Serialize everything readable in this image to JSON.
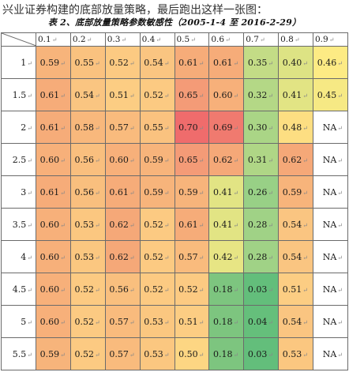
{
  "intro_text": "兴业证券构建的底部放量策略，最后跑出这样一张图：",
  "table": {
    "caption": "表 2、底部放量策略参数敏感性（2005-1-4 至 2016-2-29）",
    "column_headers": [
      "0.1",
      "0.2",
      "0.3",
      "0.4",
      "0.5",
      "0.6",
      "0.7",
      "0.8",
      "0.9"
    ],
    "rows": [
      {
        "label": "1",
        "cells": [
          {
            "text": "0.59",
            "color": "#f7b47b"
          },
          {
            "text": "0.55",
            "color": "#fac27f"
          },
          {
            "text": "0.52",
            "color": "#fcca82"
          },
          {
            "text": "0.54",
            "color": "#fac581"
          },
          {
            "text": "0.61",
            "color": "#f6ac79"
          },
          {
            "text": "0.61",
            "color": "#f6ac79"
          },
          {
            "text": "0.35",
            "color": "#c3dc86"
          },
          {
            "text": "0.40",
            "color": "#dde384"
          },
          {
            "text": "0.46",
            "color": "#fdeb84"
          }
        ]
      },
      {
        "label": "1.5",
        "cells": [
          {
            "text": "0.61",
            "color": "#f6ac79"
          },
          {
            "text": "0.54",
            "color": "#fac581"
          },
          {
            "text": "0.51",
            "color": "#fccd83"
          },
          {
            "text": "0.52",
            "color": "#fcca82"
          },
          {
            "text": "0.65",
            "color": "#f49b77"
          },
          {
            "text": "0.60",
            "color": "#f7b07a"
          },
          {
            "text": "0.32",
            "color": "#b4d886"
          },
          {
            "text": "0.41",
            "color": "#e2e484"
          },
          {
            "text": "0.45",
            "color": "#f6e984"
          }
        ]
      },
      {
        "label": "2",
        "cells": [
          {
            "text": "0.61",
            "color": "#f6ac79"
          },
          {
            "text": "0.58",
            "color": "#f8b87c"
          },
          {
            "text": "0.57",
            "color": "#f9bb7d"
          },
          {
            "text": "0.55",
            "color": "#fac27f"
          },
          {
            "text": "0.70",
            "color": "#ef6c6c"
          },
          {
            "text": "0.69",
            "color": "#f07a6f"
          },
          {
            "text": "0.30",
            "color": "#aad586"
          },
          {
            "text": "0.48",
            "color": "#fdde82"
          },
          {
            "text": "NA",
            "color": "#ffffff"
          }
        ]
      },
      {
        "label": "2.5",
        "cells": [
          {
            "text": "0.60",
            "color": "#f7b07a"
          },
          {
            "text": "0.56",
            "color": "#f9bf7e"
          },
          {
            "text": "0.60",
            "color": "#f7b07a"
          },
          {
            "text": "0.59",
            "color": "#f7b47b"
          },
          {
            "text": "0.65",
            "color": "#f49b77"
          },
          {
            "text": "0.62",
            "color": "#f5a878"
          },
          {
            "text": "0.31",
            "color": "#afd686"
          },
          {
            "text": "0.62",
            "color": "#f5a878"
          },
          {
            "text": "NA",
            "color": "#ffffff"
          }
        ]
      },
      {
        "label": "3",
        "cells": [
          {
            "text": "0.61",
            "color": "#f6ac79"
          },
          {
            "text": "0.56",
            "color": "#f9bf7e"
          },
          {
            "text": "0.61",
            "color": "#f6ac79"
          },
          {
            "text": "0.59",
            "color": "#f7b47b"
          },
          {
            "text": "0.59",
            "color": "#f7b47b"
          },
          {
            "text": "0.41",
            "color": "#e2e484"
          },
          {
            "text": "0.26",
            "color": "#98d086"
          },
          {
            "text": "0.59",
            "color": "#f7b47b"
          },
          {
            "text": "NA",
            "color": "#ffffff"
          }
        ]
      },
      {
        "label": "3.5",
        "cells": [
          {
            "text": "0.60",
            "color": "#f7b07a"
          },
          {
            "text": "0.53",
            "color": "#fbc780"
          },
          {
            "text": "0.62",
            "color": "#f5a878"
          },
          {
            "text": "0.52",
            "color": "#fcca82"
          },
          {
            "text": "0.61",
            "color": "#f6ac79"
          },
          {
            "text": "0.41",
            "color": "#e2e484"
          },
          {
            "text": "0.28",
            "color": "#a0d286"
          },
          {
            "text": "0.54",
            "color": "#fac581"
          },
          {
            "text": "NA",
            "color": "#ffffff"
          }
        ]
      },
      {
        "label": "4",
        "cells": [
          {
            "text": "0.60",
            "color": "#f7b07a"
          },
          {
            "text": "0.53",
            "color": "#fbc780"
          },
          {
            "text": "0.62",
            "color": "#f5a878"
          },
          {
            "text": "0.52",
            "color": "#fcca82"
          },
          {
            "text": "0.57",
            "color": "#f9bb7d"
          },
          {
            "text": "0.42",
            "color": "#e7e584"
          },
          {
            "text": "0.28",
            "color": "#a0d286"
          },
          {
            "text": "0.54",
            "color": "#fac581"
          },
          {
            "text": "NA",
            "color": "#ffffff"
          }
        ]
      },
      {
        "label": "4.5",
        "cells": [
          {
            "text": "0.60",
            "color": "#f7b07a"
          },
          {
            "text": "0.52",
            "color": "#fcca82"
          },
          {
            "text": "0.56",
            "color": "#f9bf7e"
          },
          {
            "text": "0.52",
            "color": "#fcca82"
          },
          {
            "text": "0.52",
            "color": "#fcca82"
          },
          {
            "text": "0.18",
            "color": "#7dc57f"
          },
          {
            "text": "0.03",
            "color": "#63be7b"
          },
          {
            "text": "0.51",
            "color": "#fccd83"
          },
          {
            "text": "NA",
            "color": "#ffffff"
          }
        ]
      },
      {
        "label": "5",
        "cells": [
          {
            "text": "0.60",
            "color": "#f7b07a"
          },
          {
            "text": "0.52",
            "color": "#fcca82"
          },
          {
            "text": "0.57",
            "color": "#f9bb7d"
          },
          {
            "text": "0.53",
            "color": "#fbc780"
          },
          {
            "text": "0.51",
            "color": "#fccd83"
          },
          {
            "text": "0.18",
            "color": "#7dc57f"
          },
          {
            "text": "0.04",
            "color": "#65bf7b"
          },
          {
            "text": "0.54",
            "color": "#fac581"
          },
          {
            "text": "NA",
            "color": "#ffffff"
          }
        ]
      },
      {
        "label": "5.5",
        "cells": [
          {
            "text": "0.59",
            "color": "#f7b47b"
          },
          {
            "text": "0.52",
            "color": "#fcca82"
          },
          {
            "text": "0.57",
            "color": "#f9bb7d"
          },
          {
            "text": "0.53",
            "color": "#fbc780"
          },
          {
            "text": "0.50",
            "color": "#fdd683"
          },
          {
            "text": "0.18",
            "color": "#7dc57f"
          },
          {
            "text": "0.03",
            "color": "#63be7b"
          },
          {
            "text": "0.53",
            "color": "#fbc780"
          },
          {
            "text": "NA",
            "color": "#ffffff"
          }
        ]
      }
    ]
  },
  "colors": {
    "low_green": "#63be7b",
    "mid_yellow": "#fdeb84",
    "high_red": "#ef6c6c",
    "grid_line": "#6b6b6b"
  }
}
